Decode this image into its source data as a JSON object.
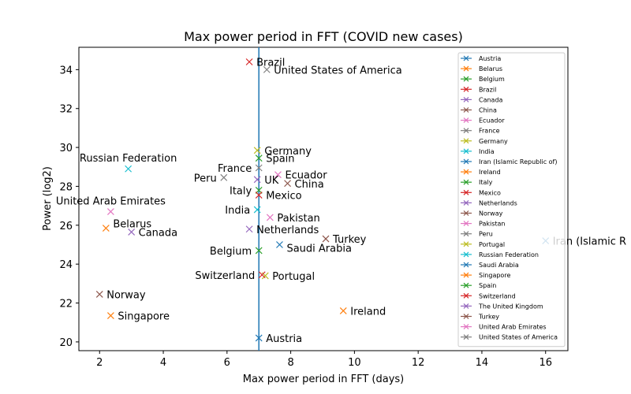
{
  "chart_data": {
    "type": "scatter",
    "title": "Max power period in FFT (COVID new cases)",
    "xlabel": "Max power period in FFT (days)",
    "ylabel": "Power (log2)",
    "xlim": [
      1.35,
      16.7
    ],
    "ylim": [
      19.55,
      35.15
    ],
    "xticks": [
      2,
      4,
      6,
      8,
      10,
      12,
      14,
      16
    ],
    "yticks": [
      20,
      22,
      24,
      26,
      28,
      30,
      32,
      34
    ],
    "vline_x": 7,
    "vline_color": "#1f77b4",
    "marker": "x",
    "legend_position": "top-right",
    "colors": [
      "#1f77b4",
      "#ff7f0e",
      "#2ca02c",
      "#d62728",
      "#9467bd",
      "#8c564b",
      "#e377c2",
      "#7f7f7f",
      "#bcbd22",
      "#17becf"
    ],
    "series": [
      {
        "name": "Austria",
        "label": "Austria",
        "x": 7.0,
        "y": 20.2,
        "label_side": "right"
      },
      {
        "name": "Belarus",
        "label": "Belarus",
        "x": 2.2,
        "y": 25.85,
        "label_side": "right-up"
      },
      {
        "name": "Belgium",
        "label": "Belgium",
        "x": 7.0,
        "y": 24.7,
        "label_side": "left"
      },
      {
        "name": "Brazil",
        "label": "Brazil",
        "x": 6.7,
        "y": 34.4,
        "label_side": "right"
      },
      {
        "name": "Canada",
        "label": "Canada",
        "x": 3.0,
        "y": 25.65,
        "label_side": "right"
      },
      {
        "name": "China",
        "label": "China",
        "x": 7.9,
        "y": 28.15,
        "label_side": "right"
      },
      {
        "name": "Ecuador",
        "label": "Ecuador",
        "x": 7.6,
        "y": 28.6,
        "label_side": "right"
      },
      {
        "name": "France",
        "label": "France",
        "x": 7.0,
        "y": 28.95,
        "label_side": "left"
      },
      {
        "name": "Germany",
        "label": "Germany",
        "x": 6.95,
        "y": 29.85,
        "label_side": "right"
      },
      {
        "name": "India",
        "label": "India",
        "x": 6.95,
        "y": 26.8,
        "label_side": "left"
      },
      {
        "name": "Iran (Islamic Republic of)",
        "label": "Iran (Islamic R",
        "x": 16.0,
        "y": 25.2,
        "label_side": "right"
      },
      {
        "name": "Ireland",
        "label": "Ireland",
        "x": 9.65,
        "y": 21.6,
        "label_side": "right"
      },
      {
        "name": "Italy",
        "label": "Italy",
        "x": 7.0,
        "y": 27.8,
        "label_side": "left"
      },
      {
        "name": "Mexico",
        "label": "Mexico",
        "x": 7.0,
        "y": 27.55,
        "label_side": "right"
      },
      {
        "name": "Netherlands",
        "label": "Netherlands",
        "x": 6.7,
        "y": 25.8,
        "label_side": "right"
      },
      {
        "name": "Norway",
        "label": "Norway",
        "x": 2.0,
        "y": 22.45,
        "label_side": "right"
      },
      {
        "name": "Pakistan",
        "label": "Pakistan",
        "x": 7.35,
        "y": 26.4,
        "label_side": "right"
      },
      {
        "name": "Peru",
        "label": "Peru",
        "x": 5.9,
        "y": 28.45,
        "label_side": "left"
      },
      {
        "name": "Portugal",
        "label": "Portugal",
        "x": 7.2,
        "y": 23.4,
        "label_side": "right"
      },
      {
        "name": "Russian Federation",
        "label": "Russian Federation",
        "x": 2.9,
        "y": 28.9,
        "label_side": "above"
      },
      {
        "name": "Saudi Arabia",
        "label": "Saudi Arabia",
        "x": 7.65,
        "y": 25.0,
        "label_side": "right-down"
      },
      {
        "name": "Singapore",
        "label": "Singapore",
        "x": 2.35,
        "y": 21.35,
        "label_side": "right"
      },
      {
        "name": "Spain",
        "label": "Spain",
        "x": 7.0,
        "y": 29.45,
        "label_side": "right"
      },
      {
        "name": "Switzerland",
        "label": "Switzerland",
        "x": 7.1,
        "y": 23.45,
        "label_side": "left"
      },
      {
        "name": "The United Kingdom",
        "label": "UK",
        "x": 6.95,
        "y": 28.35,
        "label_side": "right"
      },
      {
        "name": "Turkey",
        "label": "Turkey",
        "x": 9.1,
        "y": 25.3,
        "label_side": "right"
      },
      {
        "name": "United Arab Emirates",
        "label": "United Arab Emirates",
        "x": 2.35,
        "y": 26.7,
        "label_side": "above"
      },
      {
        "name": "United States of America",
        "label": "United States of America",
        "x": 7.25,
        "y": 34.0,
        "label_side": "right"
      }
    ]
  }
}
